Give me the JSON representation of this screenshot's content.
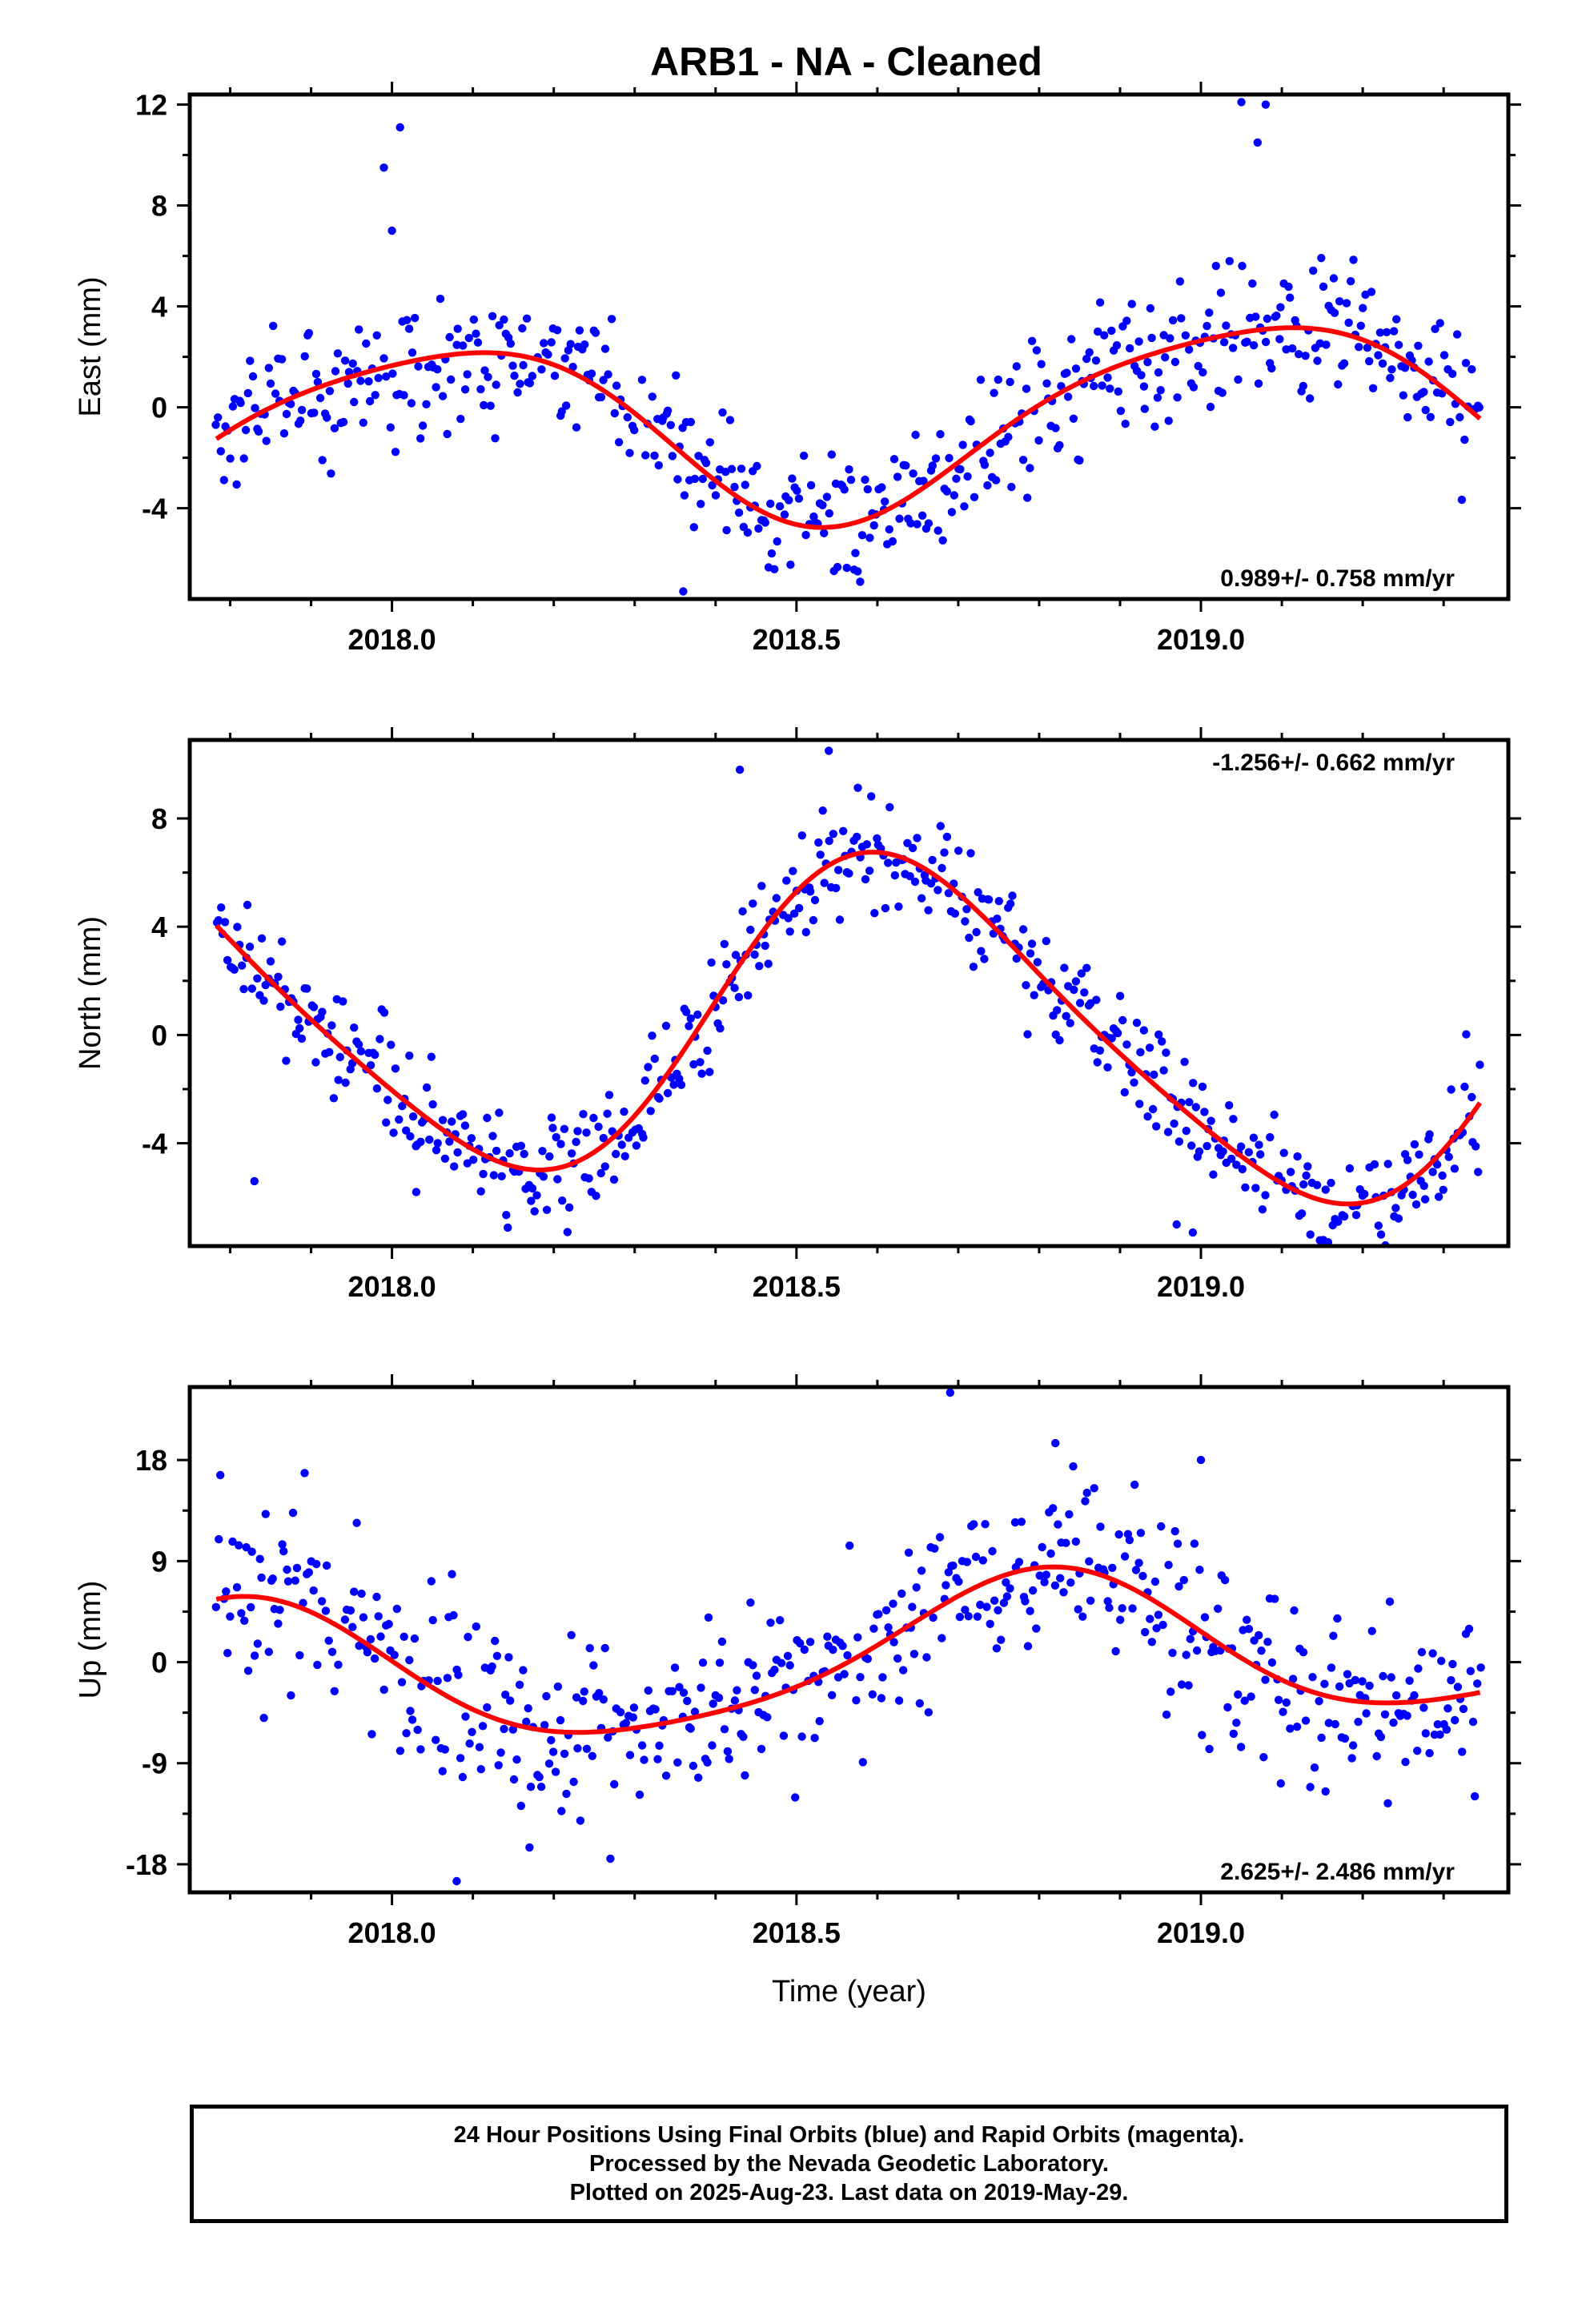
{
  "title": "ARB1  - NA - Cleaned",
  "caption": {
    "line1": "24 Hour Positions Using Final Orbits (blue) and Rapid Orbits (magenta).",
    "line2": "Processed by the Nevada Geodetic Laboratory.",
    "line3": "Plotted on 2025-Aug-23. Last data on 2019-May-29."
  },
  "colors": {
    "points": "#0000ff",
    "fit": "#ff0000",
    "axes": "#000000"
  },
  "chart_data": [
    {
      "type": "scatter",
      "name": "east",
      "ylabel": "East (mm)",
      "xlabel": "",
      "annotation": "0.989+/- 0.758 mm/yr",
      "annotation_position": "bottom-right",
      "xlim": [
        2017.75,
        2019.38
      ],
      "ylim": [
        -7.6,
        12.4
      ],
      "xticks": [
        2018.0,
        2018.5,
        2019.0
      ],
      "xtick_labels": [
        "2018.0",
        "2018.5",
        "2019.0"
      ],
      "yticks": [
        -4,
        0,
        4,
        8,
        12
      ],
      "ytick_labels": [
        "-4",
        "0",
        "4",
        "8",
        "12"
      ],
      "grid": false,
      "model": {
        "offset": -0.55,
        "rate": 0.989,
        "t0": 2018.6,
        "s1": 1.03,
        "c1": -3.45,
        "s2": 0.55,
        "c2": -0.25,
        "spread": 1.3
      },
      "outliers": [
        [
          2017.99,
          9.5
        ],
        [
          2018.01,
          11.1
        ],
        [
          2019.05,
          12.1
        ],
        [
          2019.07,
          10.5
        ],
        [
          2018.36,
          -7.3
        ],
        [
          2019.08,
          12.0
        ],
        [
          2018.0,
          7.0
        ]
      ]
    },
    {
      "type": "scatter",
      "name": "north",
      "ylabel": "North (mm)",
      "xlabel": "",
      "annotation": "-1.256+/- 0.662 mm/yr",
      "annotation_position": "top-right",
      "xlim": [
        2017.75,
        2019.38
      ],
      "ylim": [
        -7.8,
        10.9
      ],
      "xticks": [
        2018.0,
        2018.5,
        2019.0
      ],
      "xtick_labels": [
        "2018.0",
        "2018.5",
        "2019.0"
      ],
      "yticks": [
        -4,
        0,
        4,
        8
      ],
      "ytick_labels": [
        "-4",
        "0",
        "4",
        "8"
      ],
      "grid": false,
      "model": {
        "offset": 0.4,
        "rate": -1.256,
        "t0": 2018.6,
        "s1": 1.2,
        "c1": 5.8,
        "s2": -0.65,
        "c2": 0.55,
        "spread": 1.0
      },
      "outliers": [
        [
          2018.54,
          10.5
        ],
        [
          2018.97,
          -7.0
        ],
        [
          2018.99,
          -7.3
        ],
        [
          2017.83,
          -5.4
        ],
        [
          2018.03,
          -5.8
        ],
        [
          2018.43,
          9.8
        ]
      ]
    },
    {
      "type": "scatter",
      "name": "up",
      "ylabel": "Up (mm)",
      "xlabel": "Time (year)",
      "annotation": "2.625+/- 2.486 mm/yr",
      "annotation_position": "bottom-right",
      "xlim": [
        2017.75,
        2019.38
      ],
      "ylim": [
        -20.5,
        24.5
      ],
      "xticks": [
        2018.0,
        2018.5,
        2019.0
      ],
      "xtick_labels": [
        "2018.0",
        "2018.5",
        "2019.0"
      ],
      "yticks": [
        -18,
        -9,
        0,
        9,
        18
      ],
      "ytick_labels": [
        "-18",
        "-9",
        "0",
        "9",
        "18"
      ],
      "grid": false,
      "model": {
        "offset": 0.4,
        "rate": 2.625,
        "t0": 2018.6,
        "s1": 6.1,
        "c1": 2.2,
        "s2": 0.2,
        "c2": -1.1,
        "spread": 4.2
      },
      "outliers": [
        [
          2018.69,
          24.0
        ],
        [
          2018.08,
          -19.5
        ],
        [
          2018.82,
          19.5
        ],
        [
          2019.0,
          18.0
        ],
        [
          2018.27,
          -17.5
        ],
        [
          2018.17,
          -16.5
        ]
      ]
    }
  ]
}
